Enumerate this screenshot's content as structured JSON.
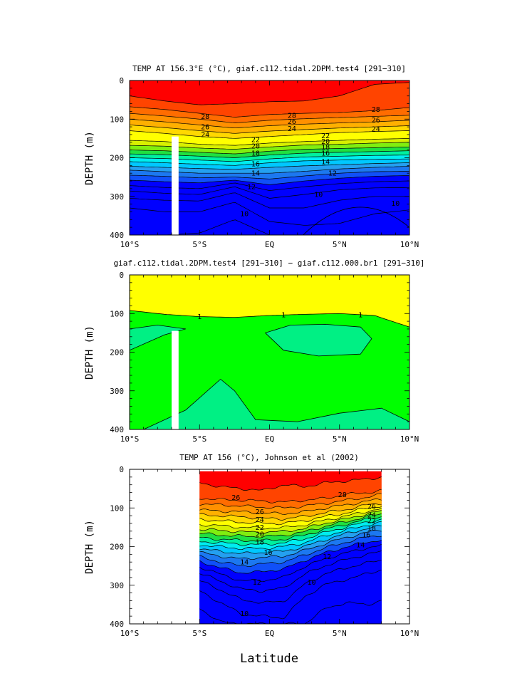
{
  "figure": {
    "xlabel": "Latitude",
    "colors": [
      "#0000ff",
      "#1050f8",
      "#1c78f0",
      "#24a0f0",
      "#00c8ff",
      "#00eef0",
      "#00f0a0",
      "#20e040",
      "#80ee10",
      "#d8f000",
      "#ffff00",
      "#ffd800",
      "#ffb000",
      "#ff9000",
      "#ff6c00",
      "#ff4400",
      "#ff0000"
    ],
    "diff_colors": {
      "positive": "#ffff00",
      "near_zero": "#00ff00",
      "negative": "#00f084"
    }
  },
  "chart_data": [
    {
      "id": "panel1",
      "type": "contour",
      "title": "TEMP AT 156.3°E (°C), giaf.c112.tidal.2DPM.test4 [291−310]",
      "ylabel": "DEPTH (m)",
      "xlim": [
        -10,
        10
      ],
      "ylim": [
        400,
        0
      ],
      "xticks": [
        -10,
        -5,
        0,
        5,
        10
      ],
      "xtick_labels": [
        "10°S",
        "5°S",
        "EQ",
        "5°N",
        "10°N"
      ],
      "yticks": [
        0,
        100,
        200,
        300,
        400
      ],
      "ytick_labels": [
        "0",
        "100",
        "200",
        "300",
        "400"
      ],
      "data_gap_lat": [
        -7.0,
        -6.5
      ],
      "data_gap_depth": [
        145,
        400
      ],
      "contour_levels": [
        29,
        28,
        27,
        26,
        25,
        24,
        23,
        22,
        21,
        20,
        19,
        18,
        17,
        16,
        15,
        14,
        13,
        12,
        11,
        10,
        9
      ],
      "contour_depth_profiles": {
        "lat": [
          -10,
          -7.5,
          -5,
          -2.5,
          0,
          2.5,
          5,
          7.5,
          10
        ],
        "depths": [
          [
            40,
            53,
            63,
            60,
            55,
            53,
            40,
            10,
            5
          ],
          [
            68,
            75,
            85,
            95,
            88,
            85,
            83,
            78,
            70
          ],
          [
            85,
            92,
            100,
            110,
            103,
            99,
            96,
            93,
            90
          ],
          [
            100,
            107,
            115,
            123,
            117,
            113,
            110,
            107,
            103
          ],
          [
            115,
            122,
            130,
            137,
            131,
            127,
            123,
            120,
            117
          ],
          [
            130,
            137,
            145,
            150,
            145,
            140,
            135,
            132,
            130
          ],
          [
            155,
            158,
            165,
            168,
            162,
            158,
            155,
            152,
            150
          ],
          [
            168,
            170,
            175,
            178,
            172,
            167,
            165,
            162,
            160
          ],
          [
            180,
            182,
            186,
            190,
            183,
            178,
            176,
            174,
            172
          ],
          [
            190,
            192,
            196,
            200,
            193,
            188,
            186,
            184,
            182
          ],
          [
            200,
            202,
            206,
            210,
            203,
            198,
            196,
            194,
            193
          ],
          [
            210,
            213,
            217,
            220,
            213,
            208,
            206,
            204,
            203
          ],
          [
            222,
            225,
            228,
            230,
            225,
            221,
            218,
            215,
            213
          ],
          [
            232,
            236,
            240,
            240,
            240,
            235,
            229,
            225,
            222
          ],
          [
            245,
            248,
            252,
            250,
            255,
            247,
            240,
            236,
            235
          ],
          [
            258,
            262,
            265,
            258,
            270,
            260,
            253,
            248,
            246
          ],
          [
            272,
            277,
            280,
            265,
            285,
            275,
            267,
            262,
            260
          ],
          [
            286,
            292,
            295,
            275,
            305,
            295,
            283,
            278,
            277
          ],
          [
            305,
            310,
            312,
            290,
            330,
            330,
            310,
            300,
            300
          ],
          [
            330,
            340,
            340,
            315,
            365,
            375,
            370,
            345,
            335
          ],
          [
            400,
            400,
            395,
            360,
            400,
            400,
            400,
            400,
            400
          ]
        ]
      },
      "blob": {
        "level": 8,
        "center_lat": 6.5,
        "top_depth": 328,
        "half_width_lat": 4.2
      },
      "contour_labels": [
        {
          "text": "28",
          "lat": -4.6,
          "depth": 93
        },
        {
          "text": "26",
          "lat": -4.6,
          "depth": 120
        },
        {
          "text": "24",
          "lat": -4.6,
          "depth": 140
        },
        {
          "text": "28",
          "lat": 1.6,
          "depth": 90
        },
        {
          "text": "26",
          "lat": 1.6,
          "depth": 106
        },
        {
          "text": "24",
          "lat": 1.6,
          "depth": 124
        },
        {
          "text": "28",
          "lat": 7.6,
          "depth": 75
        },
        {
          "text": "26",
          "lat": 7.6,
          "depth": 102
        },
        {
          "text": "24",
          "lat": 7.6,
          "depth": 125
        },
        {
          "text": "22",
          "lat": -1.0,
          "depth": 153
        },
        {
          "text": "20",
          "lat": -1.0,
          "depth": 170
        },
        {
          "text": "18",
          "lat": -1.0,
          "depth": 188
        },
        {
          "text": "22",
          "lat": 4.0,
          "depth": 143
        },
        {
          "text": "20",
          "lat": 4.0,
          "depth": 158
        },
        {
          "text": "18",
          "lat": 4.0,
          "depth": 172
        },
        {
          "text": "16",
          "lat": 4.0,
          "depth": 188
        },
        {
          "text": "14",
          "lat": 4.0,
          "depth": 210
        },
        {
          "text": "16",
          "lat": -1.0,
          "depth": 216
        },
        {
          "text": "14",
          "lat": -1.0,
          "depth": 240
        },
        {
          "text": "12",
          "lat": -1.3,
          "depth": 275
        },
        {
          "text": "12",
          "lat": 4.5,
          "depth": 240
        },
        {
          "text": "10",
          "lat": 3.5,
          "depth": 295
        },
        {
          "text": "10",
          "lat": 9.0,
          "depth": 318
        },
        {
          "text": "10",
          "lat": -1.8,
          "depth": 345
        }
      ]
    },
    {
      "id": "panel2",
      "type": "contour_difference",
      "title": "giaf.c112.tidal.2DPM.test4 [291−310] − giaf.c112.000.br1 [291−310]",
      "ylabel": "DEPTH (m)",
      "xlim": [
        -10,
        10
      ],
      "ylim": [
        400,
        0
      ],
      "xticks": [
        -10,
        -5,
        0,
        5,
        10
      ],
      "xtick_labels": [
        "10°S",
        "5°S",
        "EQ",
        "5°N",
        "10°N"
      ],
      "yticks": [
        0,
        100,
        200,
        300,
        400
      ],
      "ytick_labels": [
        "0",
        "100",
        "200",
        "300",
        "400"
      ],
      "data_gap_lat": [
        -7.0,
        -6.5
      ],
      "data_gap_depth": [
        145,
        400
      ],
      "contour_1": {
        "lat": [
          -10,
          -7.5,
          -5,
          -2.5,
          0,
          2.5,
          5,
          7.5,
          10
        ],
        "depth": [
          92,
          102,
          108,
          110,
          105,
          102,
          100,
          105,
          135
        ]
      },
      "negative_regions": [
        {
          "lat": [
            -10,
            -8,
            -6,
            -7.5,
            -10
          ],
          "depth": [
            140,
            130,
            140,
            155,
            195
          ]
        },
        {
          "lat": [
            -0.3,
            1.5,
            4,
            6.5,
            7.3,
            6.5,
            3.5,
            1,
            -0.3
          ],
          "depth": [
            150,
            130,
            128,
            135,
            165,
            205,
            210,
            195,
            150
          ]
        },
        {
          "lat": [
            -9,
            -6,
            -3.5,
            -2.5,
            -1,
            2,
            5,
            8,
            10,
            10,
            -9
          ],
          "depth": [
            400,
            350,
            270,
            300,
            375,
            380,
            358,
            345,
            380,
            400,
            400
          ]
        }
      ],
      "contour_labels": [
        {
          "text": "1",
          "lat": -5.0,
          "depth": 108
        },
        {
          "text": "1",
          "lat": 1.0,
          "depth": 103
        },
        {
          "text": "1",
          "lat": 6.5,
          "depth": 103
        }
      ]
    },
    {
      "id": "panel3",
      "type": "contour",
      "title": "TEMP AT 156 (°C), Johnson et al (2002)",
      "ylabel": "DEPTH (m)",
      "xlim": [
        -10,
        10
      ],
      "ylim": [
        400,
        0
      ],
      "xticks": [
        -10,
        -5,
        0,
        5,
        10
      ],
      "xtick_labels": [
        "10°S",
        "5°S",
        "EQ",
        "5°N",
        "10°N"
      ],
      "yticks": [
        0,
        100,
        200,
        300,
        400
      ],
      "ytick_labels": [
        "0",
        "100",
        "200",
        "300",
        "400"
      ],
      "data_lat_range": [
        -5,
        8
      ],
      "data_depth_range": [
        5,
        400
      ],
      "contour_levels": [
        29,
        28,
        27,
        26,
        25,
        24,
        23,
        22,
        21,
        20,
        19,
        18,
        17,
        16,
        15,
        14,
        13,
        12,
        11,
        10,
        9
      ],
      "contour_depth_profiles": {
        "lat": [
          -5,
          -3.5,
          -2,
          -0.5,
          1,
          2.5,
          4,
          5.5,
          7,
          8
        ],
        "depths": [
          [
            35,
            45,
            50,
            55,
            40,
            45,
            35,
            30,
            25,
            20
          ],
          [
            75,
            78,
            80,
            82,
            85,
            80,
            75,
            65,
            60,
            55
          ],
          [
            90,
            92,
            95,
            98,
            100,
            95,
            88,
            80,
            72,
            65
          ],
          [
            105,
            108,
            110,
            113,
            115,
            110,
            100,
            92,
            82,
            78
          ],
          [
            118,
            120,
            123,
            127,
            128,
            122,
            112,
            104,
            92,
            88
          ],
          [
            130,
            133,
            137,
            140,
            140,
            133,
            122,
            113,
            100,
            95
          ],
          [
            143,
            146,
            150,
            152,
            151,
            144,
            131,
            121,
            108,
            102
          ],
          [
            155,
            158,
            162,
            163,
            161,
            153,
            139,
            128,
            115,
            108
          ],
          [
            166,
            170,
            173,
            174,
            171,
            162,
            147,
            135,
            122,
            115
          ],
          [
            177,
            181,
            184,
            185,
            181,
            171,
            155,
            142,
            129,
            122
          ],
          [
            187,
            190,
            194,
            195,
            190,
            180,
            163,
            149,
            136,
            130
          ],
          [
            196,
            200,
            205,
            205,
            200,
            190,
            172,
            157,
            144,
            138
          ],
          [
            206,
            212,
            218,
            215,
            212,
            200,
            182,
            166,
            153,
            147
          ],
          [
            215,
            225,
            232,
            228,
            225,
            210,
            192,
            176,
            163,
            157
          ],
          [
            226,
            240,
            250,
            245,
            240,
            222,
            203,
            188,
            175,
            170
          ],
          [
            238,
            255,
            268,
            265,
            258,
            236,
            216,
            201,
            188,
            183
          ],
          [
            252,
            272,
            288,
            288,
            280,
            252,
            231,
            216,
            203,
            197
          ],
          [
            268,
            290,
            310,
            315,
            307,
            272,
            249,
            233,
            220,
            213
          ],
          [
            288,
            312,
            338,
            345,
            342,
            298,
            270,
            255,
            242,
            235
          ],
          [
            315,
            345,
            375,
            380,
            385,
            330,
            298,
            285,
            270,
            260
          ],
          [
            360,
            395,
            400,
            400,
            400,
            400,
            360,
            345,
            350,
            340
          ]
        ]
      },
      "contour_labels": [
        {
          "text": "26",
          "lat": -2.4,
          "depth": 73
        },
        {
          "text": "28",
          "lat": 5.2,
          "depth": 65
        },
        {
          "text": "26",
          "lat": -0.7,
          "depth": 110
        },
        {
          "text": "24",
          "lat": -0.7,
          "depth": 130
        },
        {
          "text": "22",
          "lat": -0.7,
          "depth": 150
        },
        {
          "text": "20",
          "lat": -0.7,
          "depth": 168
        },
        {
          "text": "18",
          "lat": -0.7,
          "depth": 188
        },
        {
          "text": "16",
          "lat": -0.1,
          "depth": 215
        },
        {
          "text": "14",
          "lat": -1.8,
          "depth": 240
        },
        {
          "text": "12",
          "lat": -0.9,
          "depth": 292
        },
        {
          "text": "12",
          "lat": 4.1,
          "depth": 226
        },
        {
          "text": "14",
          "lat": 6.5,
          "depth": 195
        },
        {
          "text": "10",
          "lat": 3.0,
          "depth": 292
        },
        {
          "text": "10",
          "lat": -1.8,
          "depth": 373
        },
        {
          "text": "26",
          "lat": 7.3,
          "depth": 96
        },
        {
          "text": "24",
          "lat": 7.3,
          "depth": 118
        },
        {
          "text": "22",
          "lat": 7.3,
          "depth": 133
        },
        {
          "text": "18",
          "lat": 7.3,
          "depth": 152
        },
        {
          "text": "16",
          "lat": 6.9,
          "depth": 170
        }
      ]
    }
  ]
}
